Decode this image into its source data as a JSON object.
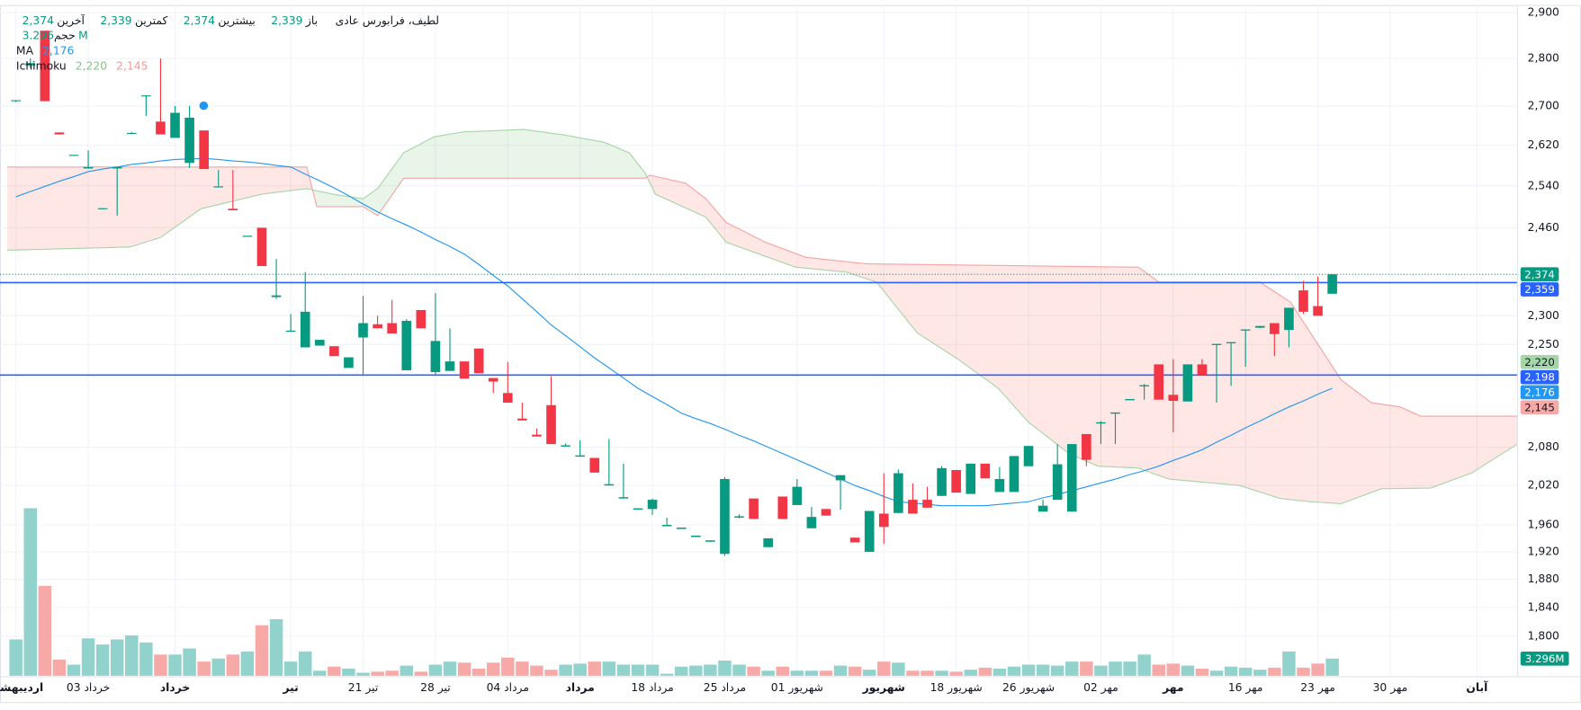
{
  "header": {
    "symbol": "لطیف، فرابورس عادی",
    "fields": [
      {
        "label": "باز",
        "value": "2,339"
      },
      {
        "label": "بیشترین",
        "value": "2,374"
      },
      {
        "label": "کمترین",
        "value": "2,339"
      },
      {
        "label": "آخرین",
        "value": "2,374"
      }
    ],
    "value_color": "#089981",
    "indicators": [
      {
        "name": "حجم",
        "values": [
          "3.296M"
        ],
        "colors": [
          "#089981"
        ]
      },
      {
        "name": "MA",
        "values": [
          "2,176"
        ],
        "colors": [
          "#2196f3"
        ]
      },
      {
        "name": "Ichimoku",
        "values": [
          "2,220",
          "2,145"
        ],
        "colors": [
          "#81c784",
          "#ef9a9a"
        ]
      }
    ]
  },
  "chart_data": {
    "type": "candlestick",
    "log_y": true,
    "grid": true,
    "up_color": "#089981",
    "down_color": "#f23645",
    "volume_up_color": "#92d2cc",
    "volume_down_color": "#f7a9a7",
    "open": [
      2710,
      2785,
      2860,
      2646,
      2599,
      2574,
      2495,
      2574,
      2643,
      2720,
      2668,
      2635,
      2585,
      2650,
      2537,
      2496,
      2443,
      2460,
      2333,
      2272,
      2245,
      2248,
      2247,
      2210,
      2262,
      2285,
      2287,
      2206,
      2310,
      2203,
      2205,
      2221,
      2243,
      2193,
      2168,
      2126,
      2100,
      2148,
      2081,
      2065,
      2063,
      2020,
      2000,
      1983,
      1984,
      1958,
      1954,
      1942,
      1935,
      1917,
      1971,
      2000,
      1927,
      2003,
      1990,
      1955,
      1984,
      2028,
      1941,
      1920,
      1977,
      1978,
      1998,
      1998,
      2004,
      2044,
      2007,
      2054,
      2010,
      2010,
      2050,
      1980,
      1998,
      1980,
      2101,
      2118,
      2134,
      2156,
      2179,
      2216,
      2165,
      2154,
      2216,
      2249,
      2252,
      2274,
      2279,
      2287,
      2275,
      2345,
      2317,
      2339
    ],
    "high": [
      2712,
      2800,
      2860,
      2646,
      2601,
      2610,
      2497,
      2577,
      2647,
      2722,
      2800,
      2700,
      2700,
      2650,
      2571,
      2571,
      2445,
      2460,
      2402,
      2303,
      2378,
      2258,
      2247,
      2228,
      2335,
      2300,
      2328,
      2294,
      2310,
      2340,
      2278,
      2221,
      2243,
      2193,
      2220,
      2152,
      2110,
      2196,
      2086,
      2091,
      2063,
      2093,
      2054,
      1985,
      2000,
      1971,
      1956,
      1944,
      1937,
      2033,
      1976,
      2000,
      1940,
      2003,
      2030,
      1987,
      1984,
      2036,
      1941,
      1981,
      2039,
      2045,
      2023,
      2018,
      2050,
      2044,
      2054,
      2054,
      2049,
      2066,
      2082,
      1998,
      2085,
      2085,
      2101,
      2122,
      2136,
      2158,
      2183,
      2216,
      2225,
      2216,
      2225,
      2251,
      2254,
      2276,
      2282,
      2287,
      2314,
      2362,
      2370,
      2374
    ],
    "low": [
      2708,
      2780,
      2710,
      2642,
      2599,
      2574,
      2495,
      2483,
      2643,
      2680,
      2642,
      2635,
      2575,
      2573,
      2537,
      2493,
      2443,
      2389,
      2330,
      2272,
      2245,
      2248,
      2230,
      2210,
      2198,
      2278,
      2269,
      2206,
      2278,
      2198,
      2205,
      2192,
      2201,
      2168,
      2152,
      2123,
      2097,
      2085,
      2081,
      2065,
      2040,
      2020,
      2000,
      1983,
      1975,
      1958,
      1954,
      1942,
      1935,
      1914,
      1970,
      1969,
      1927,
      1969,
      1990,
      1955,
      1974,
      1983,
      1934,
      1920,
      1932,
      1978,
      1977,
      1986,
      2004,
      2009,
      2007,
      2031,
      2010,
      2010,
      2050,
      1980,
      1998,
      1980,
      2050,
      2085,
      2085,
      2156,
      2157,
      2157,
      2104,
      2154,
      2198,
      2152,
      2180,
      2212,
      2278,
      2230,
      2245,
      2303,
      2300,
      2339
    ],
    "close": [
      2712,
      2790,
      2710,
      2642,
      2601,
      2577,
      2497,
      2577,
      2645,
      2722,
      2642,
      2686,
      2676,
      2573,
      2539,
      2493,
      2445,
      2389,
      2336,
      2274,
      2307,
      2258,
      2230,
      2228,
      2287,
      2278,
      2269,
      2291,
      2278,
      2256,
      2221,
      2192,
      2201,
      2187,
      2152,
      2123,
      2097,
      2085,
      2083,
      2067,
      2040,
      2022,
      2002,
      1985,
      1998,
      1960,
      1956,
      1944,
      1937,
      2030,
      1973,
      1969,
      1940,
      1969,
      2018,
      1972,
      1974,
      2036,
      1934,
      1981,
      1957,
      2039,
      1977,
      1986,
      2047,
      2009,
      2054,
      2031,
      2030,
      2066,
      2082,
      1989,
      2053,
      2085,
      2060,
      2120,
      2136,
      2158,
      2181,
      2157,
      2155,
      2216,
      2198,
      2251,
      2254,
      2276,
      2282,
      2268,
      2314,
      2307,
      2300,
      2374
    ],
    "volume": [
      6.98,
      32.2,
      17.27,
      3.1,
      2.13,
      7.18,
      6.01,
      6.98,
      7.76,
      6.4,
      4.07,
      4.07,
      5.24,
      2.72,
      3.3,
      4.07,
      4.66,
      9.7,
      10.86,
      2.72,
      4.66,
      0.97,
      1.75,
      1.36,
      0.58,
      0.78,
      0.97,
      1.94,
      0.78,
      2.13,
      2.72,
      2.52,
      1.36,
      2.52,
      3.49,
      2.72,
      1.94,
      1.16,
      2.13,
      2.33,
      2.72,
      2.72,
      2.13,
      2.13,
      2.13,
      0.39,
      1.75,
      1.94,
      2.13,
      2.91,
      2.13,
      1.75,
      0.97,
      1.75,
      0.97,
      0.97,
      0.97,
      1.94,
      1.75,
      1.16,
      2.72,
      2.52,
      0.97,
      0.97,
      0.97,
      0.78,
      1.16,
      1.55,
      1.36,
      1.75,
      2.13,
      2.13,
      1.94,
      2.72,
      2.72,
      1.94,
      2.72,
      2.72,
      4.07,
      2.13,
      2.33,
      1.94,
      1.36,
      0.97,
      1.75,
      1.55,
      1.16,
      1.55,
      4.66,
      1.55,
      2.33,
      3.296
    ],
    "vlim": [
      0,
      36
    ],
    "volume_label": {
      "value": 3.296,
      "label": "3.296M",
      "color": "#089981"
    },
    "ma": {
      "color": "#2196f3",
      "values": [
        2519,
        2529,
        2539,
        2549,
        2558,
        2568,
        2573,
        2577,
        2582,
        2585,
        2589,
        2592,
        2593,
        2594,
        2592,
        2589,
        2587,
        2584,
        2580,
        2577,
        2563,
        2550,
        2536,
        2521,
        2505,
        2490,
        2477,
        2465,
        2452,
        2438,
        2425,
        2411,
        2392,
        2372,
        2353,
        2330,
        2307,
        2284,
        2265,
        2246,
        2227,
        2210,
        2193,
        2176,
        2162,
        2149,
        2135,
        2126,
        2118,
        2109,
        2099,
        2090,
        2080,
        2070,
        2060,
        2050,
        2040,
        2030,
        2020,
        2012,
        2003,
        1995,
        1993,
        1991,
        1989,
        1989,
        1989,
        1989,
        1991,
        1993,
        1995,
        2001,
        2006,
        2012,
        2018,
        2024,
        2030,
        2037,
        2043,
        2050,
        2059,
        2067,
        2076,
        2088,
        2099,
        2111,
        2122,
        2134,
        2145,
        2155,
        2166,
        2176
      ]
    },
    "ichimoku": {
      "fill_up": "rgba(76,175,80,0.13)",
      "fill_down": "rgba(244,67,54,0.13)",
      "span_a": {
        "color": "#a5d6a7",
        "x": [
          -0.6,
          7.9,
          10.0,
          12.8,
          17.0,
          20.1,
          21.9,
          24.0,
          25.0,
          26.8,
          28.9,
          30.9,
          35.1,
          37.9,
          40.7,
          42.4,
          43.5,
          44.2,
          47.7,
          49.1,
          53.9,
          57.4,
          59.5,
          62.3,
          65.1,
          67.9,
          70.0,
          72.8,
          74.8,
          77.6,
          79.7,
          84.6,
          87.4,
          89.5,
          91.6,
          94.4,
          97.8,
          100.6,
          103.8
        ],
        "values": [
          2418,
          2424,
          2442,
          2496,
          2524,
          2535,
          2524,
          2515,
          2535,
          2605,
          2637,
          2647,
          2652,
          2641,
          2626,
          2605,
          2565,
          2524,
          2480,
          2433,
          2387,
          2378,
          2360,
          2270,
          2225,
          2176,
          2120,
          2070,
          2050,
          2047,
          2030,
          2020,
          2000,
          1995,
          1992,
          2015,
          2016,
          2039,
          2085
        ]
      },
      "span_b": {
        "color": "#f5a3a3",
        "x": [
          -0.6,
          20.1,
          20.8,
          24.0,
          25.0,
          26.8,
          43.5,
          43.8,
          46.3,
          47.7,
          49.1,
          51.8,
          54.6,
          58.8,
          77.6,
          79.0,
          86.0,
          88.1,
          90.2,
          91.6,
          93.7,
          95.7,
          97.1,
          103.8
        ],
        "values": [
          2577,
          2577,
          2500,
          2500,
          2483,
          2555,
          2555,
          2561,
          2545,
          2515,
          2470,
          2433,
          2405,
          2393,
          2387,
          2360,
          2360,
          2324,
          2243,
          2190,
          2152,
          2145,
          2130,
          2130
        ]
      }
    },
    "price_lines": [
      {
        "value": 2359,
        "color": "#2962ff"
      },
      {
        "value": 2198,
        "color": "#2962ff"
      }
    ],
    "last_price": {
      "value": 2374,
      "color": "#089981"
    },
    "axis_labels": [
      {
        "value": 2374,
        "label": "2,374",
        "color": "#089981",
        "text_color": "#ffffff"
      },
      {
        "value": 2359,
        "label": "2,359",
        "color": "#2962ff",
        "text_color": "#ffffff"
      },
      {
        "value": 2220,
        "label": "2,220",
        "color": "#a5d6a7",
        "text_color": "#131722"
      },
      {
        "value": 2198,
        "label": "2,198",
        "color": "#2962ff",
        "text_color": "#ffffff"
      },
      {
        "value": 2176,
        "label": "2,176",
        "color": "#2196f3",
        "text_color": "#ffffff"
      },
      {
        "value": 2145,
        "label": "2,145",
        "color": "#f7a9a7",
        "text_color": "#131722"
      }
    ],
    "ylim": [
      1760,
      2910
    ],
    "yticks": [
      {
        "value": 2900,
        "label": "2,900"
      },
      {
        "value": 2800,
        "label": "2,800"
      },
      {
        "value": 2700,
        "label": "2,700"
      },
      {
        "value": 2620,
        "label": "2,620"
      },
      {
        "value": 2540,
        "label": "2,540"
      },
      {
        "value": 2460,
        "label": "2,460"
      },
      {
        "value": 2300,
        "label": "2,300"
      },
      {
        "value": 2250,
        "label": "2,250"
      },
      {
        "value": 2080,
        "label": "2,080"
      },
      {
        "value": 2020,
        "label": "2,020"
      },
      {
        "value": 1960,
        "label": "1,960"
      },
      {
        "value": 1920,
        "label": "1,920"
      },
      {
        "value": 1880,
        "label": "1,880"
      },
      {
        "value": 1840,
        "label": "1,840"
      },
      {
        "value": 1800,
        "label": "1,800"
      }
    ],
    "xlim": [
      -1.1,
      103.8
    ],
    "xticks": [
      {
        "value": 0,
        "label": "اردیبهشت",
        "major": true
      },
      {
        "value": 5,
        "label": "03 خرداد"
      },
      {
        "value": 11,
        "label": "خرداد",
        "major": true
      },
      {
        "value": 19,
        "label": "تیر",
        "major": true
      },
      {
        "value": 24,
        "label": "21 تیر"
      },
      {
        "value": 29,
        "label": "28 تیر"
      },
      {
        "value": 34,
        "label": "04 مرداد"
      },
      {
        "value": 39,
        "label": "مرداد",
        "major": true
      },
      {
        "value": 44,
        "label": "18 مرداد"
      },
      {
        "value": 49,
        "label": "25 مرداد"
      },
      {
        "value": 54,
        "label": "01 شهریور"
      },
      {
        "value": 60,
        "label": "شهریور",
        "major": true
      },
      {
        "value": 65,
        "label": "18 شهریور"
      },
      {
        "value": 70,
        "label": "26 شهریور"
      },
      {
        "value": 75,
        "label": "02 مهر"
      },
      {
        "value": 80,
        "label": "مهر",
        "major": true
      },
      {
        "value": 85,
        "label": "16 مهر"
      },
      {
        "value": 90,
        "label": "23 مهر"
      },
      {
        "value": 95,
        "label": "30 مهر"
      },
      {
        "value": 101,
        "label": "آبان",
        "major": true
      }
    ]
  }
}
